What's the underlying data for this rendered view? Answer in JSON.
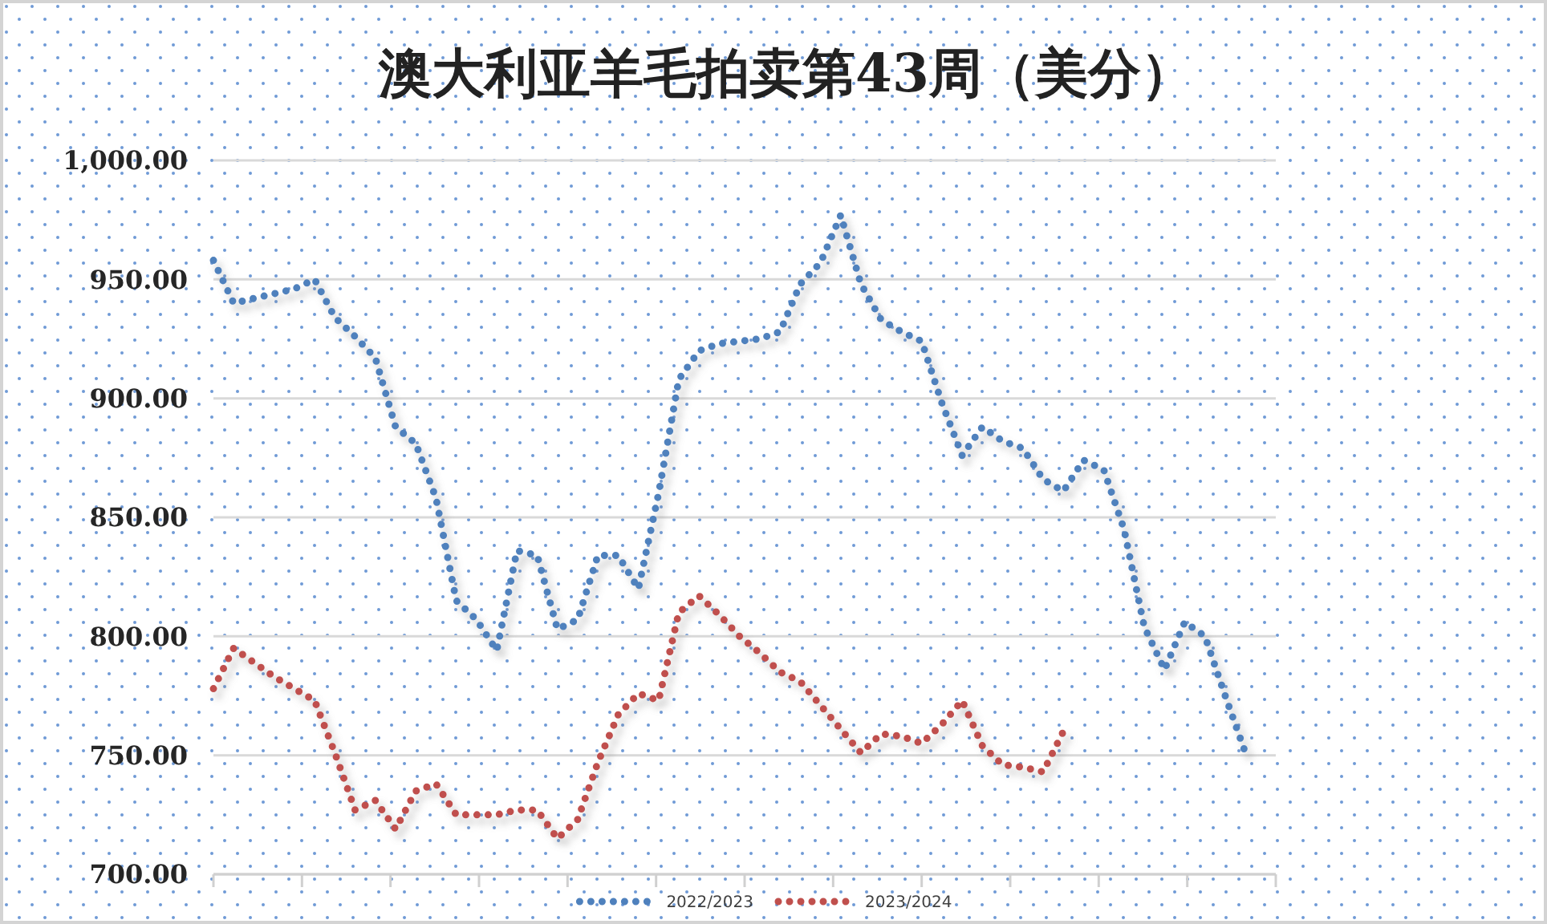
{
  "chart_data": {
    "type": "line",
    "title": "澳大利亚羊毛拍卖第43周（美分）",
    "categories": [
      null,
      null,
      null,
      null,
      null,
      null,
      null,
      null,
      null,
      null,
      null,
      null,
      null,
      null,
      null,
      null,
      null,
      null,
      null,
      null,
      null,
      null,
      null,
      null,
      null,
      null,
      null,
      null,
      null,
      null,
      null,
      null,
      null,
      null,
      null,
      null,
      null,
      null,
      null,
      null,
      null,
      null,
      null,
      null,
      null,
      null,
      null,
      null,
      null,
      null,
      null,
      null
    ],
    "series": [
      {
        "name": "2022/2023",
        "color": "#4f81bd",
        "values": [
          958,
          940,
          942,
          944,
          946,
          950,
          934,
          926,
          917,
          888,
          881,
          858,
          815,
          807,
          794,
          836,
          834,
          803,
          807,
          834,
          834,
          820,
          860,
          908,
          920,
          923,
          924,
          925,
          928,
          948,
          957,
          977,
          948,
          933,
          928,
          924,
          898,
          876,
          888,
          882,
          879,
          866,
          861,
          874,
          870,
          845,
          804,
          786,
          806,
          800,
          775,
          751
        ]
      },
      {
        "name": "2023/2024",
        "color": "#c0504d",
        "values": [
          778,
          795,
          789,
          783,
          778,
          773,
          751,
          727,
          731,
          719,
          735,
          738,
          725,
          725,
          725,
          727,
          727,
          715,
          723,
          747,
          767,
          776,
          773,
          810,
          817,
          809,
          800,
          793,
          785,
          781,
          771,
          761,
          751,
          759,
          758,
          755,
          763,
          773,
          754,
          746,
          745,
          743,
          760,
          null,
          null,
          null,
          null,
          null,
          null,
          null,
          null,
          null
        ]
      }
    ],
    "ylim": [
      700,
      1000
    ],
    "yticks": [
      {
        "value": 700,
        "label": "700.00"
      },
      {
        "value": 750,
        "label": "750.00"
      },
      {
        "value": 800,
        "label": "800.00"
      },
      {
        "value": 850,
        "label": "850.00"
      },
      {
        "value": 900,
        "label": "900.00"
      },
      {
        "value": 950,
        "label": "950.00"
      },
      {
        "value": 1000,
        "label": "1,000.00"
      }
    ],
    "grid": "y",
    "legend": "bottom",
    "line_style": "dotted"
  }
}
